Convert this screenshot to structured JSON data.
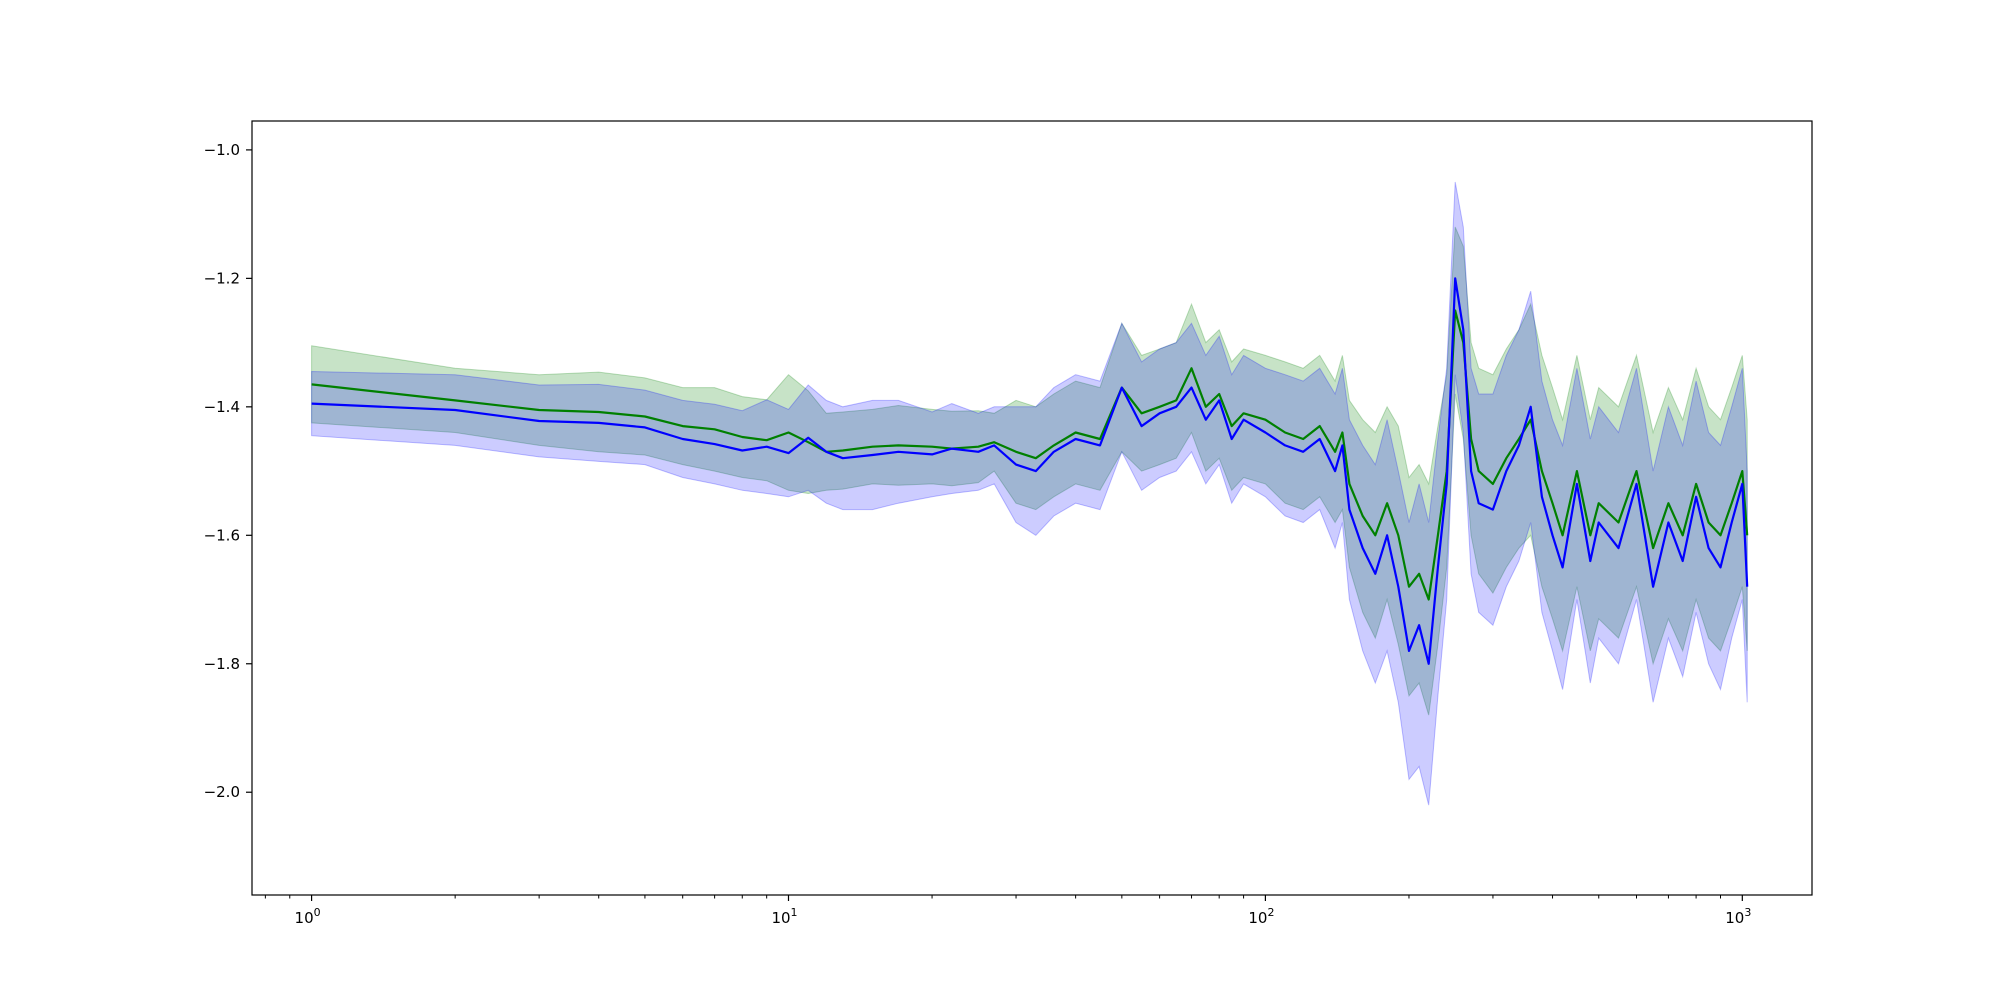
{
  "chart_data": {
    "type": "line",
    "title": "",
    "xlabel": "",
    "ylabel": "",
    "x_scale": "log",
    "xlim": [
      0.75,
      1400
    ],
    "ylim": [
      -2.16,
      -0.955
    ],
    "grid": false,
    "legend": "none",
    "x_ticks": [
      {
        "value": 1,
        "base": "10",
        "exp": "0"
      },
      {
        "value": 10,
        "base": "10",
        "exp": "1"
      },
      {
        "value": 100,
        "base": "10",
        "exp": "2"
      },
      {
        "value": 1000,
        "base": "10",
        "exp": "3"
      }
    ],
    "y_ticks": [
      {
        "value": -1.0,
        "label": "−1.0"
      },
      {
        "value": -1.2,
        "label": "−1.2"
      },
      {
        "value": -1.4,
        "label": "−1.4"
      },
      {
        "value": -1.6,
        "label": "−1.6"
      },
      {
        "value": -1.8,
        "label": "−1.8"
      },
      {
        "value": -2.0,
        "label": "−2.0"
      }
    ],
    "series": [
      {
        "color": "#008000",
        "band_color": "#008000",
        "band_opacity": 0.22,
        "x": [
          1,
          2,
          3,
          4,
          5,
          6,
          7,
          8,
          9,
          10,
          11,
          12,
          13,
          15,
          17,
          20,
          22,
          25,
          27,
          30,
          33,
          36,
          40,
          45,
          50,
          55,
          60,
          65,
          70,
          75,
          80,
          85,
          90,
          100,
          110,
          120,
          130,
          140,
          145,
          150,
          160,
          170,
          180,
          190,
          200,
          210,
          220,
          230,
          240,
          250,
          260,
          270,
          280,
          300,
          320,
          340,
          360,
          380,
          400,
          420,
          450,
          480,
          500,
          550,
          600,
          650,
          700,
          750,
          800,
          850,
          900,
          950,
          1000,
          1024
        ],
        "values": [
          -1.365,
          -1.39,
          -1.405,
          -1.408,
          -1.415,
          -1.43,
          -1.435,
          -1.447,
          -1.452,
          -1.44,
          -1.455,
          -1.47,
          -1.468,
          -1.462,
          -1.46,
          -1.462,
          -1.465,
          -1.462,
          -1.455,
          -1.47,
          -1.48,
          -1.46,
          -1.44,
          -1.45,
          -1.37,
          -1.41,
          -1.4,
          -1.39,
          -1.34,
          -1.4,
          -1.38,
          -1.43,
          -1.41,
          -1.42,
          -1.44,
          -1.45,
          -1.43,
          -1.47,
          -1.44,
          -1.52,
          -1.57,
          -1.6,
          -1.55,
          -1.6,
          -1.68,
          -1.66,
          -1.7,
          -1.6,
          -1.5,
          -1.25,
          -1.3,
          -1.45,
          -1.5,
          -1.52,
          -1.48,
          -1.45,
          -1.42,
          -1.5,
          -1.55,
          -1.6,
          -1.5,
          -1.6,
          -1.55,
          -1.58,
          -1.5,
          -1.62,
          -1.55,
          -1.6,
          -1.52,
          -1.58,
          -1.6,
          -1.55,
          -1.5,
          -1.6
        ],
        "band_low": [
          -1.425,
          -1.44,
          -1.46,
          -1.47,
          -1.475,
          -1.49,
          -1.5,
          -1.51,
          -1.515,
          -1.53,
          -1.535,
          -1.53,
          -1.528,
          -1.52,
          -1.522,
          -1.52,
          -1.523,
          -1.518,
          -1.5,
          -1.55,
          -1.56,
          -1.54,
          -1.52,
          -1.53,
          -1.47,
          -1.5,
          -1.49,
          -1.48,
          -1.44,
          -1.5,
          -1.48,
          -1.53,
          -1.51,
          -1.52,
          -1.55,
          -1.56,
          -1.54,
          -1.58,
          -1.56,
          -1.65,
          -1.72,
          -1.76,
          -1.7,
          -1.77,
          -1.85,
          -1.83,
          -1.88,
          -1.77,
          -1.65,
          -1.38,
          -1.45,
          -1.6,
          -1.66,
          -1.69,
          -1.65,
          -1.62,
          -1.6,
          -1.68,
          -1.73,
          -1.78,
          -1.68,
          -1.78,
          -1.73,
          -1.76,
          -1.68,
          -1.8,
          -1.73,
          -1.78,
          -1.7,
          -1.76,
          -1.78,
          -1.73,
          -1.68,
          -1.78
        ],
        "band_high": [
          -1.305,
          -1.34,
          -1.35,
          -1.346,
          -1.355,
          -1.37,
          -1.37,
          -1.384,
          -1.389,
          -1.35,
          -1.375,
          -1.41,
          -1.408,
          -1.404,
          -1.398,
          -1.404,
          -1.407,
          -1.406,
          -1.41,
          -1.39,
          -1.4,
          -1.38,
          -1.36,
          -1.37,
          -1.27,
          -1.32,
          -1.31,
          -1.3,
          -1.24,
          -1.3,
          -1.28,
          -1.33,
          -1.31,
          -1.32,
          -1.33,
          -1.34,
          -1.32,
          -1.36,
          -1.32,
          -1.39,
          -1.42,
          -1.44,
          -1.4,
          -1.43,
          -1.51,
          -1.49,
          -1.52,
          -1.43,
          -1.35,
          -1.12,
          -1.15,
          -1.3,
          -1.34,
          -1.35,
          -1.31,
          -1.28,
          -1.24,
          -1.32,
          -1.37,
          -1.42,
          -1.32,
          -1.42,
          -1.37,
          -1.4,
          -1.32,
          -1.44,
          -1.37,
          -1.42,
          -1.34,
          -1.4,
          -1.42,
          -1.37,
          -1.32,
          -1.42
        ]
      },
      {
        "color": "#0000ff",
        "band_color": "#0000ff",
        "band_opacity": 0.2,
        "x": [
          1,
          2,
          3,
          4,
          5,
          6,
          7,
          8,
          9,
          10,
          11,
          12,
          13,
          15,
          17,
          20,
          22,
          25,
          27,
          30,
          33,
          36,
          40,
          45,
          50,
          55,
          60,
          65,
          70,
          75,
          80,
          85,
          90,
          100,
          110,
          120,
          130,
          140,
          145,
          150,
          160,
          170,
          180,
          190,
          200,
          210,
          220,
          230,
          240,
          250,
          260,
          270,
          280,
          300,
          320,
          340,
          360,
          380,
          400,
          420,
          450,
          480,
          500,
          550,
          600,
          650,
          700,
          750,
          800,
          850,
          900,
          950,
          1000,
          1024
        ],
        "values": [
          -1.395,
          -1.405,
          -1.422,
          -1.425,
          -1.432,
          -1.45,
          -1.458,
          -1.468,
          -1.462,
          -1.472,
          -1.448,
          -1.47,
          -1.48,
          -1.475,
          -1.47,
          -1.474,
          -1.465,
          -1.47,
          -1.46,
          -1.49,
          -1.5,
          -1.47,
          -1.45,
          -1.46,
          -1.37,
          -1.43,
          -1.41,
          -1.4,
          -1.37,
          -1.42,
          -1.39,
          -1.45,
          -1.42,
          -1.44,
          -1.46,
          -1.47,
          -1.45,
          -1.5,
          -1.46,
          -1.56,
          -1.62,
          -1.66,
          -1.6,
          -1.68,
          -1.78,
          -1.74,
          -1.8,
          -1.65,
          -1.52,
          -1.2,
          -1.28,
          -1.5,
          -1.55,
          -1.56,
          -1.5,
          -1.46,
          -1.4,
          -1.54,
          -1.6,
          -1.65,
          -1.52,
          -1.64,
          -1.58,
          -1.62,
          -1.52,
          -1.68,
          -1.58,
          -1.64,
          -1.54,
          -1.62,
          -1.65,
          -1.58,
          -1.52,
          -1.68
        ],
        "band_low": [
          -1.445,
          -1.46,
          -1.478,
          -1.485,
          -1.49,
          -1.51,
          -1.52,
          -1.53,
          -1.535,
          -1.54,
          -1.53,
          -1.55,
          -1.56,
          -1.56,
          -1.55,
          -1.54,
          -1.535,
          -1.53,
          -1.52,
          -1.58,
          -1.6,
          -1.57,
          -1.55,
          -1.56,
          -1.47,
          -1.53,
          -1.51,
          -1.5,
          -1.47,
          -1.52,
          -1.49,
          -1.55,
          -1.52,
          -1.54,
          -1.57,
          -1.58,
          -1.56,
          -1.62,
          -1.58,
          -1.7,
          -1.78,
          -1.83,
          -1.78,
          -1.86,
          -1.98,
          -1.96,
          -2.02,
          -1.85,
          -1.7,
          -1.35,
          -1.44,
          -1.66,
          -1.72,
          -1.74,
          -1.68,
          -1.64,
          -1.58,
          -1.72,
          -1.78,
          -1.84,
          -1.7,
          -1.83,
          -1.76,
          -1.8,
          -1.7,
          -1.86,
          -1.76,
          -1.82,
          -1.72,
          -1.8,
          -1.84,
          -1.76,
          -1.7,
          -1.86
        ],
        "band_high": [
          -1.345,
          -1.35,
          -1.366,
          -1.365,
          -1.374,
          -1.39,
          -1.396,
          -1.406,
          -1.389,
          -1.404,
          -1.366,
          -1.39,
          -1.4,
          -1.39,
          -1.39,
          -1.408,
          -1.395,
          -1.41,
          -1.4,
          -1.4,
          -1.4,
          -1.37,
          -1.35,
          -1.36,
          -1.27,
          -1.33,
          -1.31,
          -1.3,
          -1.27,
          -1.32,
          -1.29,
          -1.35,
          -1.32,
          -1.34,
          -1.35,
          -1.36,
          -1.34,
          -1.38,
          -1.34,
          -1.42,
          -1.46,
          -1.49,
          -1.42,
          -1.5,
          -1.58,
          -1.52,
          -1.58,
          -1.45,
          -1.34,
          -1.05,
          -1.12,
          -1.34,
          -1.38,
          -1.38,
          -1.32,
          -1.28,
          -1.22,
          -1.36,
          -1.42,
          -1.46,
          -1.34,
          -1.45,
          -1.4,
          -1.44,
          -1.34,
          -1.5,
          -1.4,
          -1.46,
          -1.36,
          -1.44,
          -1.46,
          -1.4,
          -1.34,
          -1.5
        ]
      }
    ]
  }
}
